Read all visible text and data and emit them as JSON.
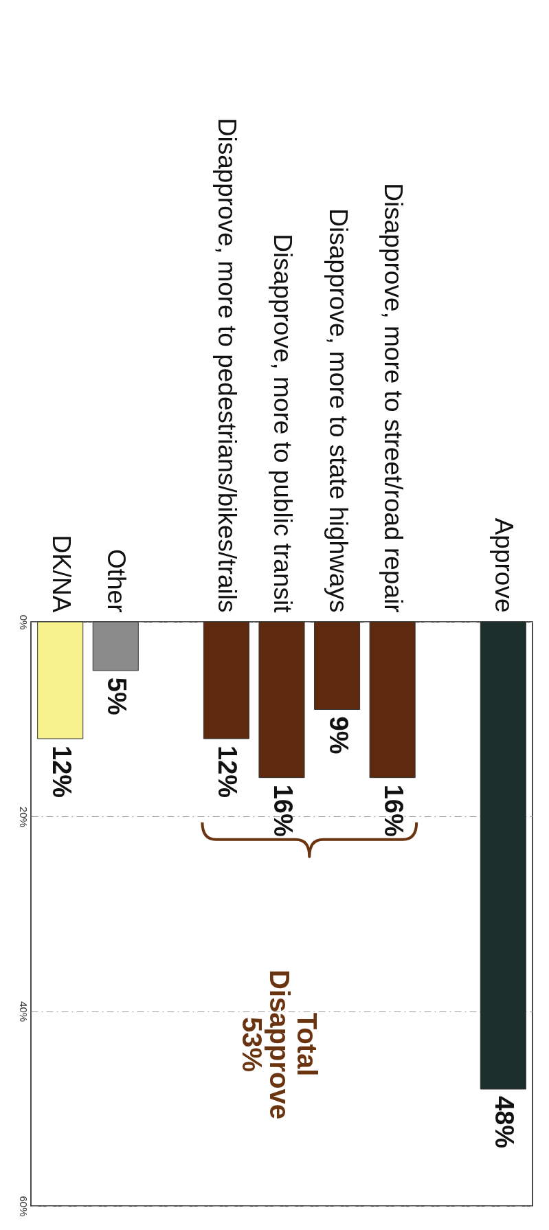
{
  "chart_data": {
    "type": "bar",
    "categories": [
      "DK/NA",
      "Other",
      null,
      "Disapprove, more to pedestrians/bikes/trails",
      "Disapprove, more to public transit",
      "Disapprove, more to state highways",
      "Disapprove, more to street/road repair",
      null,
      "Approve"
    ],
    "values": [
      12,
      5,
      null,
      12,
      16,
      9,
      16,
      null,
      48
    ],
    "colors": [
      "#f7f28e",
      "#8a8a8a",
      null,
      "#5e2a0f",
      "#5e2a0f",
      "#5e2a0f",
      "#5e2a0f",
      null,
      "#1d2f2a"
    ],
    "value_labels": [
      "12%",
      "5%",
      null,
      "12%",
      "16%",
      "9%",
      "16%",
      null,
      "48%"
    ],
    "ylim": [
      60,
      0
    ],
    "yticks": [
      {
        "value": 0,
        "label": "0%"
      },
      {
        "value": 20,
        "label": "20%"
      },
      {
        "value": 40,
        "label": "40%"
      },
      {
        "value": 60,
        "label": "60%"
      }
    ],
    "grid": "y",
    "annotations": [
      "Total Disapprove 53%"
    ]
  }
}
